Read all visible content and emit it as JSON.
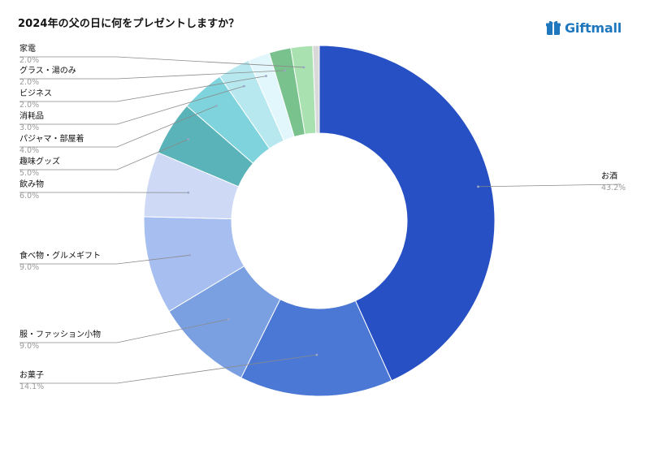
{
  "title": "2024年の父の日に何をプレゼントしますか？",
  "logo": {
    "text": "Giftmall",
    "icon": "gift-box-icon",
    "color": "#1f78bd"
  },
  "chart_data": {
    "type": "pie",
    "title": "2024年の父の日に何をプレゼントしますか？",
    "donut": true,
    "slices": [
      {
        "label": "お酒",
        "value": 43.2,
        "pct_label": "43.2%",
        "color": "#2650c4"
      },
      {
        "label": "お菓子",
        "value": 14.1,
        "pct_label": "14.1%",
        "color": "#4a78d4"
      },
      {
        "label": "服・ファッション小物",
        "value": 9.0,
        "pct_label": "9.0%",
        "color": "#7ba0e2"
      },
      {
        "label": "食べ物・グルメギフト",
        "value": 9.0,
        "pct_label": "9.0%",
        "color": "#a7bff0"
      },
      {
        "label": "飲み物",
        "value": 6.0,
        "pct_label": "6.0%",
        "color": "#cdd9f5"
      },
      {
        "label": "趣味グッズ",
        "value": 5.0,
        "pct_label": "5.0%",
        "color": "#5ab3b8"
      },
      {
        "label": "パジャマ・部屋着",
        "value": 4.0,
        "pct_label": "4.0%",
        "color": "#7fd3dc"
      },
      {
        "label": "消耗品",
        "value": 3.0,
        "pct_label": "3.0%",
        "color": "#b7e8ef"
      },
      {
        "label": "ビジネス",
        "value": 2.0,
        "pct_label": "2.0%",
        "color": "#e2f7fb"
      },
      {
        "label": "グラス・湯のみ",
        "value": 2.0,
        "pct_label": "2.0%",
        "color": "#79c28d"
      },
      {
        "label": "家電",
        "value": 2.0,
        "pct_label": "2.0%",
        "color": "#a9e2b0"
      },
      {
        "label": "",
        "value": 0.6,
        "pct_label": "",
        "color": "#d9d9d9"
      }
    ]
  }
}
